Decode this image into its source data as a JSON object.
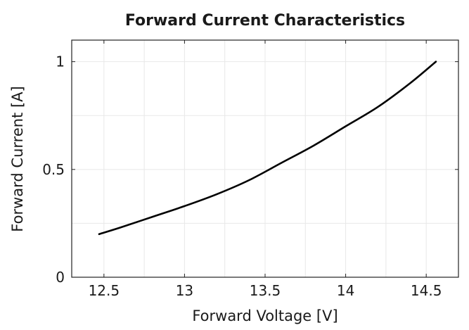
{
  "chart_data": {
    "type": "line",
    "title": "Forward Current Characteristics",
    "xlabel": "Forward Voltage [V]",
    "ylabel": "Forward Current [A]",
    "xlim": [
      12.3,
      14.7
    ],
    "ylim": [
      0,
      1.1
    ],
    "xticks": [
      12.5,
      13,
      13.5,
      14,
      14.5
    ],
    "xtick_labels": [
      "12.5",
      "13",
      "13.5",
      "14",
      "14.5"
    ],
    "yticks": [
      0,
      0.5,
      1
    ],
    "ytick_labels": [
      "0",
      "0.5",
      "1"
    ],
    "grid": true,
    "series": [
      {
        "color": "#000000",
        "x": [
          12.47,
          12.6,
          12.8,
          13.0,
          13.2,
          13.4,
          13.6,
          13.8,
          14.0,
          14.2,
          14.4,
          14.56
        ],
        "y": [
          0.2,
          0.23,
          0.28,
          0.33,
          0.385,
          0.45,
          0.53,
          0.61,
          0.7,
          0.79,
          0.9,
          1.0
        ]
      }
    ]
  }
}
